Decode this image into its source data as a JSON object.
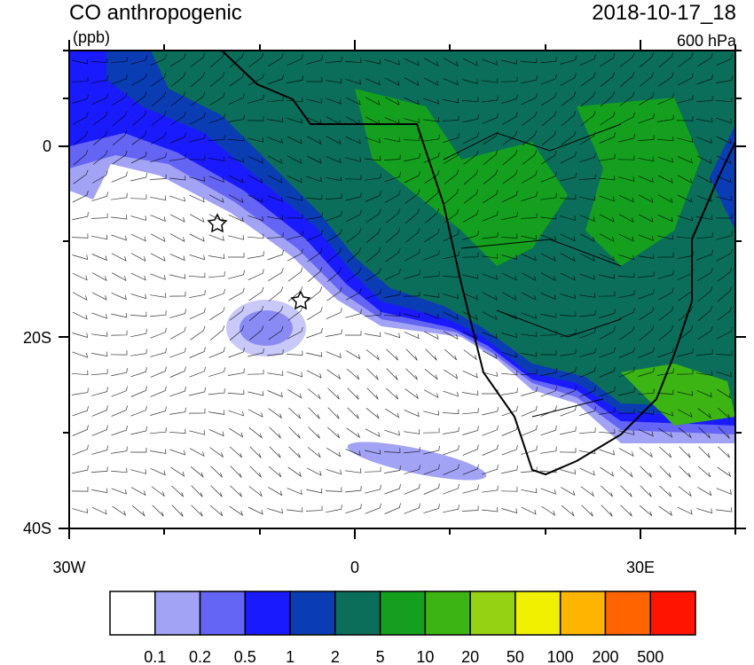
{
  "title": "CO anthropogenic",
  "units": "(ppb)",
  "datetime": "2018-10-17_18",
  "level": "600 hPa",
  "map": {
    "lat_labels": [
      "0",
      "20S",
      "40S"
    ],
    "lon_labels": [
      "30W",
      "0",
      "30E"
    ]
  },
  "colorbar": {
    "colors": [
      "#ffffff",
      "#a3a3f5",
      "#6464f5",
      "#1a1aff",
      "#0a3cb4",
      "#0a6e5a",
      "#14a01e",
      "#3cb414",
      "#96d214",
      "#f0f000",
      "#ffb400",
      "#ff6400",
      "#ff1400"
    ],
    "labels": [
      "0.1",
      "0.2",
      "0.5",
      "1",
      "2",
      "5",
      "10",
      "20",
      "50",
      "100",
      "200",
      "500"
    ]
  }
}
